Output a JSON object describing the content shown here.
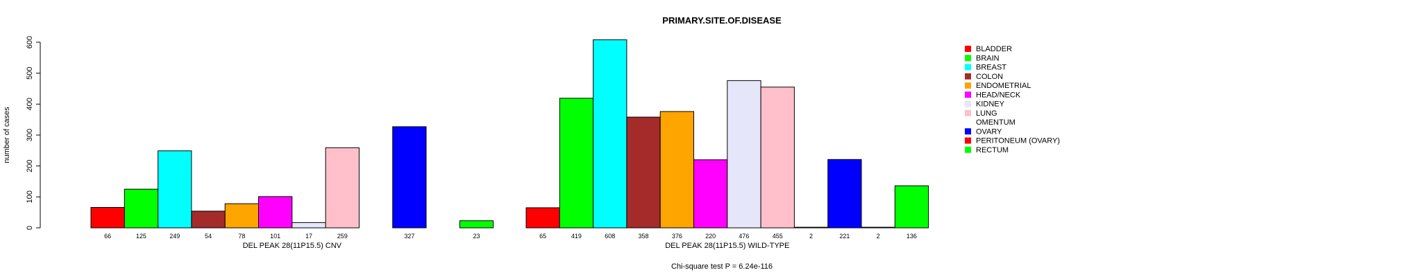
{
  "chart_data": {
    "type": "bar",
    "title": "PRIMARY.SITE.OF.DISEASE",
    "ylabel": "number of cases",
    "ylim": [
      0,
      600
    ],
    "yticks": [
      0,
      100,
      200,
      300,
      400,
      500,
      600
    ],
    "footnote": "Chi-square test P = 6.24e-116",
    "categories": [
      "BLADDER",
      "BRAIN",
      "BREAST",
      "COLON",
      "ENDOMETRIAL",
      "HEAD/NECK",
      "KIDNEY",
      "LUNG",
      "OMENTUM",
      "OVARY",
      "PERITONEUM (OVARY)",
      "RECTUM"
    ],
    "colors": [
      "#ff0000",
      "#00ff00",
      "#00ffff",
      "#a52a2a",
      "#ffa500",
      "#ff00ff",
      "#e6e6fa",
      "#ffc0cb",
      "#ffffff",
      "#0000ff",
      "#ff0000",
      "#00ff00"
    ],
    "groups": [
      {
        "name": "DEL PEAK 28(11P15.5) CNV",
        "values": [
          66,
          125,
          249,
          54,
          78,
          101,
          17,
          259,
          0,
          327,
          0,
          23
        ],
        "labels": [
          "66",
          "125",
          "249",
          "54",
          "78",
          "101",
          "17",
          "259",
          "",
          "327",
          "",
          "23"
        ]
      },
      {
        "name": "DEL PEAK 28(11P15.5) WILD-TYPE",
        "values": [
          65,
          419,
          608,
          358,
          376,
          220,
          476,
          455,
          2,
          221,
          2,
          136
        ],
        "labels": [
          "65",
          "419",
          "608",
          "358",
          "376",
          "220",
          "476",
          "455",
          "2",
          "221",
          "2",
          "136"
        ]
      }
    ],
    "legend": {
      "position": "right"
    }
  }
}
